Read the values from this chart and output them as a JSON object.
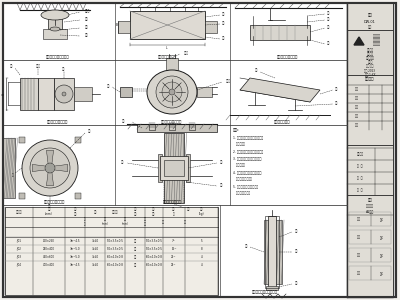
{
  "bg": "#f2f0ec",
  "white": "#ffffff",
  "lc": "#1a1a1a",
  "lc_light": "#555555",
  "lc_mid": "#333333",
  "tc": "#111111",
  "panel_bg": "#e8e5de",
  "hatch_bg": "#c8c5be",
  "drawing_bg": "#f5f3ef"
}
